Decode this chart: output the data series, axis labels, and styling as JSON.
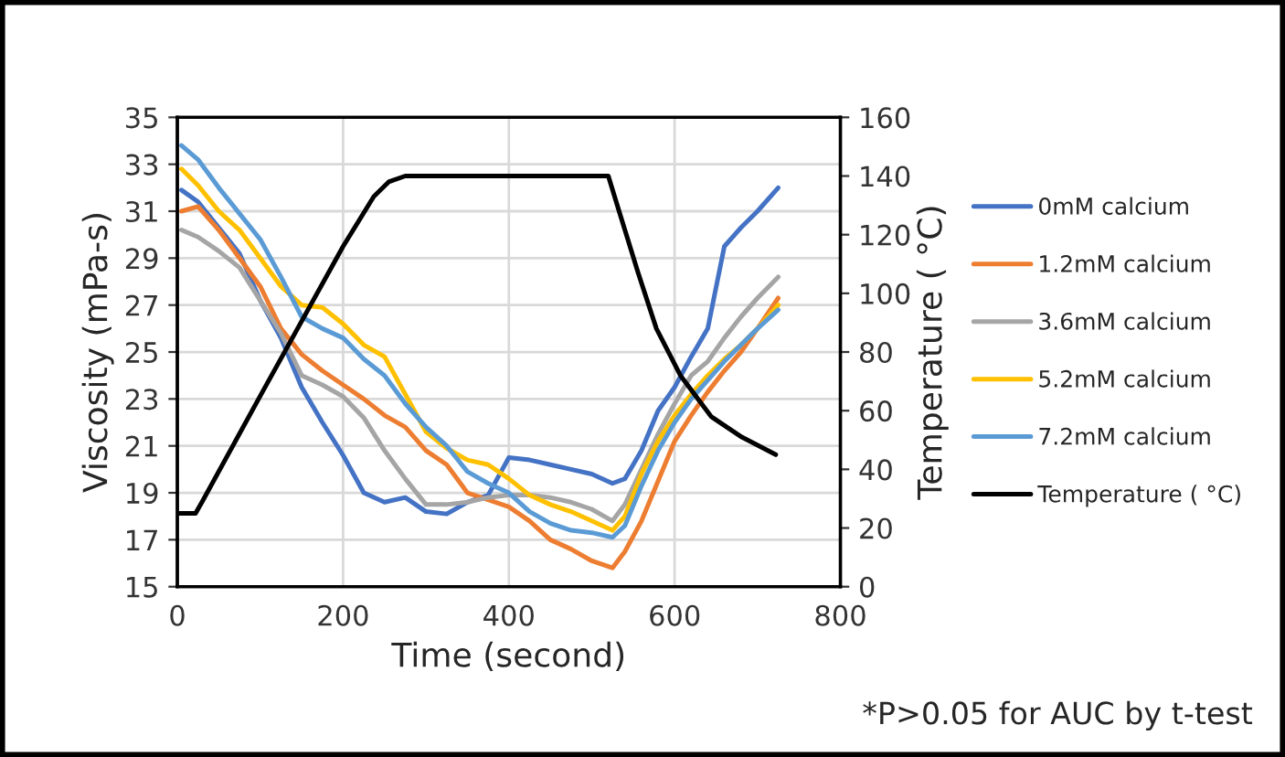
{
  "chart_data": {
    "type": "line",
    "xlabel": "Time (second)",
    "ylabel": "Viscosity (mPa-s)",
    "y2label": "Temperature ( °C)",
    "x": [
      5,
      25,
      50,
      75,
      100,
      125,
      150,
      175,
      200,
      225,
      250,
      275,
      300,
      325,
      350,
      375,
      400,
      425,
      450,
      475,
      500,
      525,
      540,
      560,
      580,
      600,
      620,
      640,
      660,
      680,
      700,
      725
    ],
    "series": [
      {
        "name": "0mM calcium",
        "color": "#4472c4",
        "values": [
          31.9,
          31.4,
          30.3,
          29.2,
          27.2,
          25.6,
          23.5,
          22.0,
          20.6,
          19.0,
          18.6,
          18.8,
          18.2,
          18.1,
          18.6,
          18.9,
          20.5,
          20.4,
          20.2,
          20.0,
          19.8,
          19.4,
          19.6,
          20.8,
          22.5,
          23.5,
          24.8,
          26.0,
          29.5,
          30.3,
          31.0,
          32.0
        ]
      },
      {
        "name": "1.2mM calcium",
        "color": "#ed7d31",
        "values": [
          31.0,
          31.2,
          30.2,
          29.0,
          27.8,
          26.0,
          24.9,
          24.2,
          23.6,
          23.0,
          22.3,
          21.8,
          20.8,
          20.2,
          19.0,
          18.7,
          18.4,
          17.8,
          17.0,
          16.6,
          16.1,
          15.8,
          16.5,
          17.8,
          19.5,
          21.2,
          22.3,
          23.3,
          24.2,
          25.0,
          26.0,
          27.3
        ]
      },
      {
        "name": "3.6mM calcium",
        "color": "#a5a5a5",
        "values": [
          30.2,
          29.9,
          29.3,
          28.6,
          27.2,
          25.8,
          24.0,
          23.6,
          23.1,
          22.2,
          20.8,
          19.6,
          18.5,
          18.5,
          18.6,
          18.8,
          18.9,
          18.9,
          18.8,
          18.6,
          18.3,
          17.8,
          18.5,
          20.0,
          21.5,
          22.8,
          24.0,
          24.6,
          25.6,
          26.5,
          27.3,
          28.2
        ]
      },
      {
        "name": "5.2mM calcium",
        "color": "#ffc000",
        "values": [
          32.8,
          32.1,
          31.0,
          30.2,
          29.0,
          27.8,
          27.0,
          26.9,
          26.2,
          25.3,
          24.8,
          23.2,
          21.6,
          20.9,
          20.4,
          20.2,
          19.6,
          18.9,
          18.5,
          18.2,
          17.8,
          17.4,
          18.0,
          19.8,
          21.2,
          22.3,
          23.2,
          24.0,
          24.7,
          25.3,
          26.0,
          27.0
        ]
      },
      {
        "name": "7.2mM calcium",
        "color": "#5b9bd5",
        "values": [
          33.8,
          33.2,
          32.0,
          30.9,
          29.8,
          28.2,
          26.5,
          26.0,
          25.6,
          24.7,
          24.0,
          22.8,
          21.8,
          21.0,
          19.9,
          19.4,
          19.0,
          18.2,
          17.7,
          17.4,
          17.3,
          17.1,
          17.6,
          19.3,
          20.8,
          22.0,
          23.0,
          23.8,
          24.6,
          25.3,
          26.0,
          26.8
        ]
      },
      {
        "name": "Temperature ( °C)",
        "color": "#000000",
        "axis": "y2",
        "x": [
          0,
          22,
          30,
          100,
          200,
          237,
          255,
          275,
          520,
          533,
          556,
          578,
          607,
          644,
          681,
          722
        ],
        "values": [
          25,
          25,
          29,
          65,
          116,
          133,
          138,
          140,
          140,
          128,
          107,
          88,
          72,
          58,
          51,
          45
        ]
      }
    ],
    "xlim": [
      0,
      800
    ],
    "xticks": [
      0,
      200,
      400,
      600,
      800
    ],
    "ylim": [
      15,
      35
    ],
    "yticks": [
      15,
      17,
      19,
      21,
      23,
      25,
      27,
      29,
      31,
      33,
      35
    ],
    "y2lim": [
      0,
      160
    ],
    "y2ticks": [
      0,
      20,
      40,
      60,
      80,
      100,
      120,
      140,
      160
    ],
    "grid": true,
    "legend": "right",
    "line_style": "solid",
    "marker": "none",
    "annotations": [
      "*P>0.05 for AUC by t-test"
    ]
  }
}
